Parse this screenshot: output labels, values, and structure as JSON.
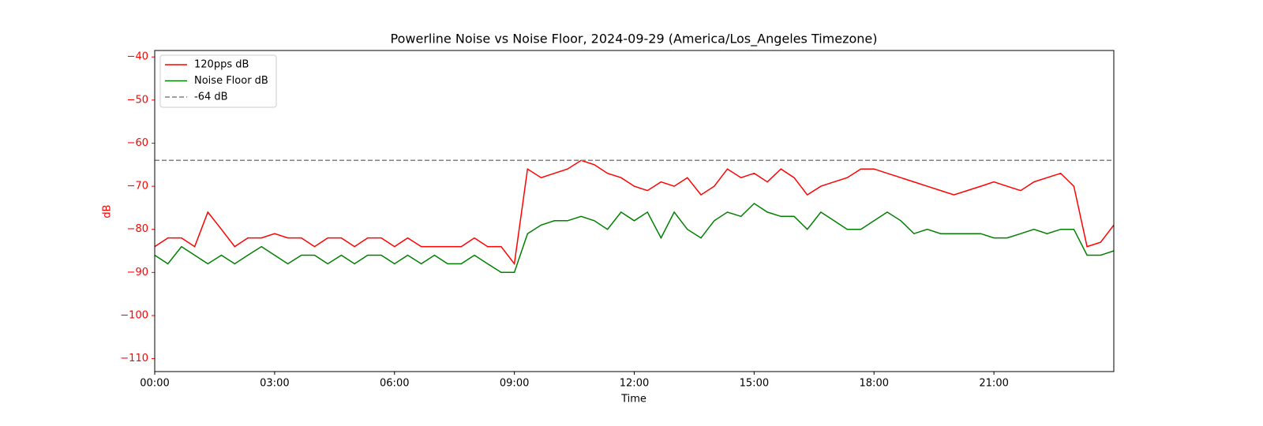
{
  "chart_data": {
    "type": "line",
    "title": "Powerline Noise vs Noise Floor, 2024-09-29 (America/Los_Angeles Timezone)",
    "x_label": "Time",
    "y_label": "dB",
    "y_label_color": "#ff0000",
    "ytick_color": "#ff0000",
    "x": [
      0,
      0.33,
      0.67,
      1,
      1.33,
      1.67,
      2,
      2.33,
      2.67,
      3,
      3.33,
      3.67,
      4,
      4.33,
      4.67,
      5,
      5.33,
      5.67,
      6,
      6.33,
      6.67,
      7,
      7.33,
      7.67,
      8,
      8.33,
      8.67,
      9,
      9.33,
      9.67,
      10,
      10.33,
      10.67,
      11,
      11.33,
      11.67,
      12,
      12.33,
      12.67,
      13,
      13.33,
      13.67,
      14,
      14.33,
      14.67,
      15,
      15.33,
      15.67,
      16,
      16.33,
      16.67,
      17,
      17.33,
      17.67,
      18,
      18.33,
      18.67,
      19,
      19.33,
      19.67,
      20,
      20.33,
      20.67,
      21,
      21.33,
      21.67,
      22,
      22.33,
      22.67,
      23,
      23.33,
      23.67,
      24
    ],
    "series": [
      {
        "name": "120pps dB",
        "color": "#ff0000",
        "values": [
          -84,
          -82,
          -82,
          -84,
          -76,
          -80,
          -84,
          -82,
          -82,
          -81,
          -82,
          -82,
          -84,
          -82,
          -82,
          -84,
          -82,
          -82,
          -84,
          -82,
          -84,
          -84,
          -84,
          -84,
          -82,
          -84,
          -84,
          -88,
          -66,
          -68,
          -67,
          -66,
          -64,
          -65,
          -67,
          -68,
          -70,
          -71,
          -69,
          -70,
          -68,
          -72,
          -70,
          -66,
          -68,
          -67,
          -69,
          -66,
          -68,
          -72,
          -70,
          -69,
          -68,
          -66,
          -66,
          -67,
          -68,
          -69,
          -70,
          -71,
          -72,
          -71,
          -70,
          -69,
          -70,
          -71,
          -69,
          -68,
          -67,
          -70,
          -84,
          -83,
          -79
        ]
      },
      {
        "name": "Noise Floor dB",
        "color": "#008000",
        "values": [
          -86,
          -88,
          -84,
          -86,
          -88,
          -86,
          -88,
          -86,
          -84,
          -86,
          -88,
          -86,
          -86,
          -88,
          -86,
          -88,
          -86,
          -86,
          -88,
          -86,
          -88,
          -86,
          -88,
          -88,
          -86,
          -88,
          -90,
          -90,
          -81,
          -79,
          -78,
          -78,
          -77,
          -78,
          -80,
          -76,
          -78,
          -76,
          -82,
          -76,
          -80,
          -82,
          -78,
          -76,
          -77,
          -74,
          -76,
          -77,
          -77,
          -80,
          -76,
          -78,
          -80,
          -80,
          -78,
          -76,
          -78,
          -81,
          -80,
          -81,
          -81,
          -81,
          -81,
          -82,
          -82,
          -81,
          -80,
          -81,
          -80,
          -80,
          -86,
          -86,
          -85
        ]
      }
    ],
    "hline": {
      "name": "-64 dB",
      "value": -64,
      "color": "#808080"
    },
    "xlim": [
      0,
      24
    ],
    "xticks": [
      {
        "value": 0,
        "label": "00:00"
      },
      {
        "value": 3,
        "label": "03:00"
      },
      {
        "value": 6,
        "label": "06:00"
      },
      {
        "value": 9,
        "label": "09:00"
      },
      {
        "value": 12,
        "label": "12:00"
      },
      {
        "value": 15,
        "label": "15:00"
      },
      {
        "value": 18,
        "label": "18:00"
      },
      {
        "value": 21,
        "label": "21:00"
      }
    ],
    "ylim": [
      -113,
      -38.5
    ],
    "yticks": [
      {
        "value": -40,
        "label": "−40"
      },
      {
        "value": -50,
        "label": "−50"
      },
      {
        "value": -60,
        "label": "−60"
      },
      {
        "value": -70,
        "label": "−70"
      },
      {
        "value": -80,
        "label": "−80"
      },
      {
        "value": -90,
        "label": "−90"
      },
      {
        "value": -100,
        "label": "−100"
      },
      {
        "value": -110,
        "label": "−110"
      }
    ],
    "legend": "upper left",
    "grid": false
  }
}
